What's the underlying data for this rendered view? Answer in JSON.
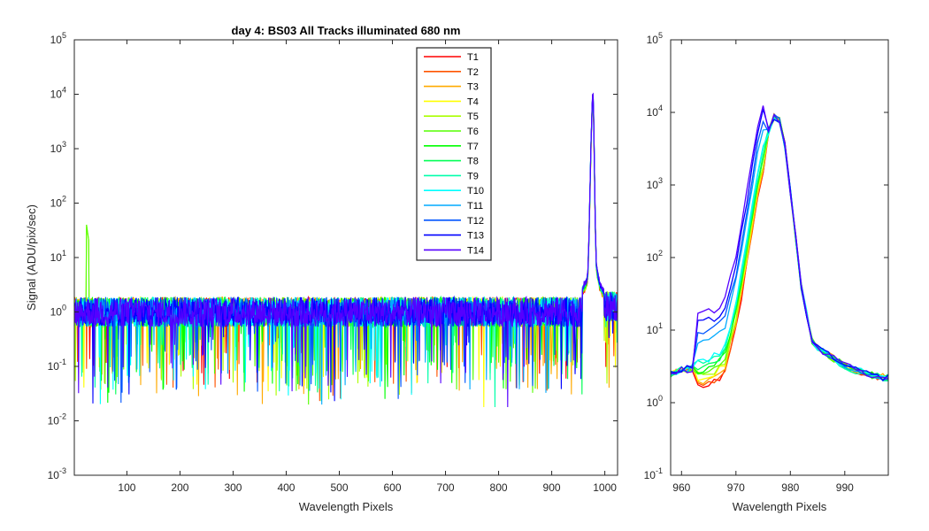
{
  "chart_data": [
    {
      "type": "line",
      "title": "day 4: BS03   All Tracks illuminated   680 nm",
      "xlabel": "Wavelength Pixels",
      "ylabel": "Signal (ADU/pix/sec)",
      "xlim": [
        1,
        1024
      ],
      "ylim": [
        0.001,
        100000
      ],
      "yscale": "log",
      "xticks": [
        100,
        200,
        300,
        400,
        500,
        600,
        700,
        800,
        900,
        1000
      ],
      "yticks": [
        0.001,
        0.01,
        0.1,
        1,
        10,
        100,
        1000,
        10000,
        100000
      ],
      "ytick_labels": [
        [
          "10",
          "-3"
        ],
        [
          "10",
          "-2"
        ],
        [
          "10",
          "-1"
        ],
        [
          "10",
          "0"
        ],
        [
          "10",
          "1"
        ],
        [
          "10",
          "2"
        ],
        [
          "10",
          "3"
        ],
        [
          "10",
          "4"
        ],
        [
          "10",
          "5"
        ]
      ],
      "legend_position": "top-center",
      "series": [
        {
          "name": "T1",
          "color": "#ff0000"
        },
        {
          "name": "T2",
          "color": "#ff5500"
        },
        {
          "name": "T3",
          "color": "#ffaa00"
        },
        {
          "name": "T4",
          "color": "#ffff00"
        },
        {
          "name": "T5",
          "color": "#aaff00"
        },
        {
          "name": "T6",
          "color": "#55ff00"
        },
        {
          "name": "T7",
          "color": "#00ff00"
        },
        {
          "name": "T8",
          "color": "#00ff55"
        },
        {
          "name": "T9",
          "color": "#00ffaa"
        },
        {
          "name": "T10",
          "color": "#00ffff"
        },
        {
          "name": "T11",
          "color": "#00aaff"
        },
        {
          "name": "T12",
          "color": "#0055ff"
        },
        {
          "name": "T13",
          "color": "#0000ff"
        },
        {
          "name": "T14",
          "color": "#5500ff"
        }
      ],
      "features": {
        "baseline_level": 1.0,
        "peak_x": 976,
        "peak_y": 9000,
        "spike_x": 25,
        "spike_y": 40
      }
    },
    {
      "type": "line",
      "xlabel": "Wavelength Pixels",
      "xlim": [
        958,
        998
      ],
      "ylim": [
        0.1,
        100000
      ],
      "yscale": "log",
      "xticks": [
        960,
        970,
        980,
        990
      ],
      "yticks": [
        0.1,
        1,
        10,
        100,
        1000,
        10000,
        100000
      ],
      "ytick_labels": [
        [
          "10",
          "-1"
        ],
        [
          "10",
          "0"
        ],
        [
          "10",
          "1"
        ],
        [
          "10",
          "2"
        ],
        [
          "10",
          "3"
        ],
        [
          "10",
          "4"
        ],
        [
          "10",
          "5"
        ]
      ],
      "peak_profile": {
        "x": [
          958,
          960,
          962,
          964,
          966,
          968,
          970,
          972,
          974,
          976,
          977,
          978,
          979,
          980,
          982,
          984,
          986,
          988,
          990,
          992,
          994,
          996,
          998
        ],
        "y": [
          2.5,
          2.8,
          3.0,
          3.2,
          3.6,
          5,
          20,
          150,
          1200,
          5500,
          8500,
          8000,
          3500,
          800,
          40,
          7,
          5,
          4,
          3.2,
          2.8,
          2.5,
          2.3,
          2.2
        ]
      }
    }
  ]
}
